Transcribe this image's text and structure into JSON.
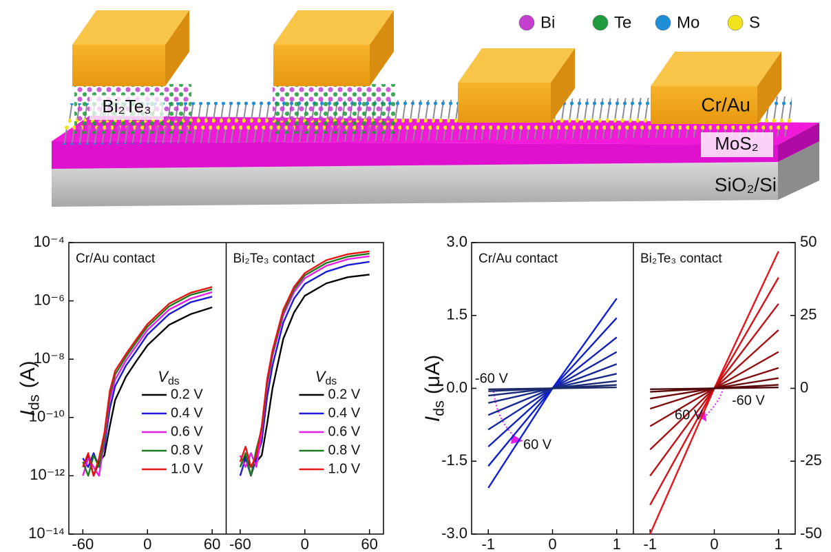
{
  "schematic": {
    "legend": [
      {
        "label": "Bi",
        "color": "#c43fd0"
      },
      {
        "label": "Te",
        "color": "#1f9a3c"
      },
      {
        "label": "Mo",
        "color": "#1e8fd6"
      },
      {
        "label": "S",
        "color": "#f2e21c"
      }
    ],
    "labels": {
      "bi2te3": "Bi₂Te₃",
      "electrode": "Cr/Au",
      "channel": "MoS₂",
      "substrate": "SiO₂/Si"
    }
  },
  "chart_data": [
    {
      "type": "line",
      "log_y": true,
      "ylabel": {
        "symbol": "I",
        "sub": "ds",
        "unit": "(A)"
      },
      "legend_title": {
        "symbol": "V",
        "sub": "ds"
      },
      "x": [
        -60,
        -55,
        -50,
        -45,
        -40,
        -35,
        -30,
        -20,
        -10,
        0,
        20,
        40,
        60
      ],
      "xlim": [
        -73,
        73
      ],
      "xticks": [
        -60,
        0,
        60
      ],
      "ylim": [
        1e-14,
        0.0001
      ],
      "yticks": [
        {
          "value": 1e-14,
          "label": "10⁻¹⁴"
        },
        {
          "value": 1e-12,
          "label": "10⁻¹²"
        },
        {
          "value": 1e-10,
          "label": "10⁻¹⁰"
        },
        {
          "value": 1e-08,
          "label": "10⁻⁸"
        },
        {
          "value": 1e-06,
          "label": "10⁻⁶"
        },
        {
          "value": 0.0001,
          "label": "10⁻⁴"
        }
      ],
      "panels": [
        {
          "title": "Cr/Au contact",
          "series": [
            {
              "name": "0.2 V",
              "color": "#000000",
              "values": [
                2e-12,
                5e-12,
                1e-12,
                3e-12,
                5e-12,
                5e-11,
                4e-10,
                2.5e-09,
                9e-09,
                3e-08,
                1.5e-07,
                3.5e-07,
                6e-07
              ]
            },
            {
              "name": "0.4 V",
              "color": "#1a1ad6",
              "values": [
                4e-12,
                2e-12,
                6e-12,
                2e-12,
                1e-11,
                2e-10,
                1.2e-09,
                6e-09,
                2e-08,
                7e-08,
                3.5e-07,
                9e-07,
                1.4e-06
              ]
            },
            {
              "name": "0.6 V",
              "color": "#e81ee8",
              "values": [
                1e-12,
                4e-12,
                2e-12,
                1e-12,
                1.5e-11,
                4e-10,
                2e-09,
                9e-09,
                3e-08,
                1e-07,
                5e-07,
                1.2e-06,
                2e-06
              ]
            },
            {
              "name": "0.8 V",
              "color": "#1c7a1c",
              "values": [
                3e-12,
                1e-12,
                5e-12,
                2e-12,
                2e-11,
                6e-10,
                3e-09,
                1.2e-08,
                4e-08,
                1.3e-07,
                6.5e-07,
                1.6e-06,
                2.5e-06
              ]
            },
            {
              "name": "1.0 V",
              "color": "#e81414",
              "values": [
                2e-12,
                6e-12,
                1e-12,
                4e-12,
                3e-11,
                8e-10,
                4e-09,
                1.5e-08,
                5e-08,
                1.6e-07,
                8e-07,
                1.9e-06,
                3e-06
              ]
            }
          ]
        },
        {
          "title": "Bi₂Te₃ contact",
          "series": [
            {
              "name": "0.2 V",
              "color": "#000000",
              "values": [
                2e-12,
                5e-12,
                2e-12,
                3e-12,
                5e-12,
                6e-11,
                1e-09,
                5e-08,
                4e-07,
                1.5e-06,
                4e-06,
                6.5e-06,
                8e-06
              ]
            },
            {
              "name": "0.4 V",
              "color": "#1a1ad6",
              "values": [
                1e-12,
                4e-12,
                1e-12,
                4e-12,
                1.5e-11,
                5e-10,
                6e-09,
                1.8e-07,
                1.2e-06,
                3.8e-06,
                1e-05,
                1.7e-05,
                2.2e-05
              ]
            },
            {
              "name": "0.6 V",
              "color": "#e81ee8",
              "values": [
                5e-12,
                2e-12,
                6e-12,
                2e-12,
                3e-11,
                1.2e-09,
                1.3e-08,
                3.2e-07,
                2e-06,
                6e-06,
                1.6e-05,
                2.7e-05,
                3.4e-05
              ]
            },
            {
              "name": "0.8 V",
              "color": "#1c7a1c",
              "values": [
                2e-12,
                6e-12,
                1e-12,
                8e-12,
                4e-11,
                1.5e-09,
                1.6e-08,
                4e-07,
                2.5e-06,
                7.5e-06,
                2e-05,
                3.3e-05,
                4.2e-05
              ]
            },
            {
              "name": "1.0 V",
              "color": "#e81414",
              "values": [
                3e-12,
                1e-11,
                2e-12,
                5e-12,
                5e-11,
                2e-09,
                2e-08,
                5e-07,
                3e-06,
                9e-06,
                2.5e-05,
                4e-05,
                5e-05
              ]
            }
          ]
        }
      ]
    },
    {
      "type": "line",
      "ylabel": {
        "symbol": "I",
        "sub": "ds",
        "unit": "(μA)"
      },
      "x": [
        -1,
        0,
        1
      ],
      "xlim": [
        -1.26,
        1.26
      ],
      "xticks": [
        -1,
        0,
        1
      ],
      "ylim": [
        -3,
        3
      ],
      "yticks": [
        {
          "value": 3,
          "label": "3.0"
        },
        {
          "value": 1.5,
          "label": "1.5"
        },
        {
          "value": 0,
          "label": "0.0"
        },
        {
          "value": -1.5,
          "label": "-1.5"
        },
        {
          "value": -3,
          "label": "-3.0"
        }
      ],
      "y2lim": [
        -50,
        50
      ],
      "y2ticks": [
        50,
        25,
        0,
        -25,
        -50
      ],
      "panels": [
        {
          "title": "Cr/Au contact",
          "annotations": [
            "-60 V",
            "60 V"
          ],
          "series": [
            {
              "color": "#0f1fd8",
              "values": [
                -2.05,
                0,
                1.85
              ]
            },
            {
              "color": "#1020c8",
              "values": [
                -1.6,
                0,
                1.45
              ]
            },
            {
              "color": "#1222b8",
              "values": [
                -1.2,
                0,
                1.05
              ]
            },
            {
              "color": "#1424a8",
              "values": [
                -0.85,
                0,
                0.75
              ]
            },
            {
              "color": "#162698",
              "values": [
                -0.55,
                0,
                0.5
              ]
            },
            {
              "color": "#18288a",
              "values": [
                -0.3,
                0,
                0.3
              ]
            },
            {
              "color": "#1a2a7c",
              "values": [
                -0.15,
                0,
                0.15
              ]
            },
            {
              "color": "#1b2a70",
              "values": [
                -0.06,
                0,
                0.07
              ]
            },
            {
              "color": "#1c2a66",
              "values": [
                -0.02,
                0,
                0.02
              ]
            }
          ]
        },
        {
          "title": "Bi₂Te₃ contact",
          "annotations": [
            "60 V",
            "-60 V"
          ],
          "series": [
            {
              "color": "#e8141c",
              "axis": "y2",
              "values": [
                -50,
                0,
                47
              ]
            },
            {
              "color": "#d41218",
              "axis": "y2",
              "values": [
                -40,
                0,
                38
              ]
            },
            {
              "color": "#c01014",
              "axis": "y2",
              "values": [
                -30,
                0,
                29
              ]
            },
            {
              "color": "#a80e12",
              "axis": "y2",
              "values": [
                -21,
                0,
                20
              ]
            },
            {
              "color": "#940c10",
              "axis": "y2",
              "values": [
                -13,
                0,
                12.5
              ]
            },
            {
              "color": "#800b0e",
              "axis": "y2",
              "values": [
                -7,
                0,
                7
              ]
            },
            {
              "color": "#6c0a0c",
              "axis": "y2",
              "values": [
                -3.5,
                0,
                3.5
              ]
            },
            {
              "color": "#5c090b",
              "axis": "y2",
              "values": [
                -1.2,
                0,
                1.2
              ]
            },
            {
              "color": "#4e080a",
              "axis": "y2",
              "values": [
                -0.3,
                0,
                0.3
              ]
            }
          ]
        }
      ]
    }
  ]
}
